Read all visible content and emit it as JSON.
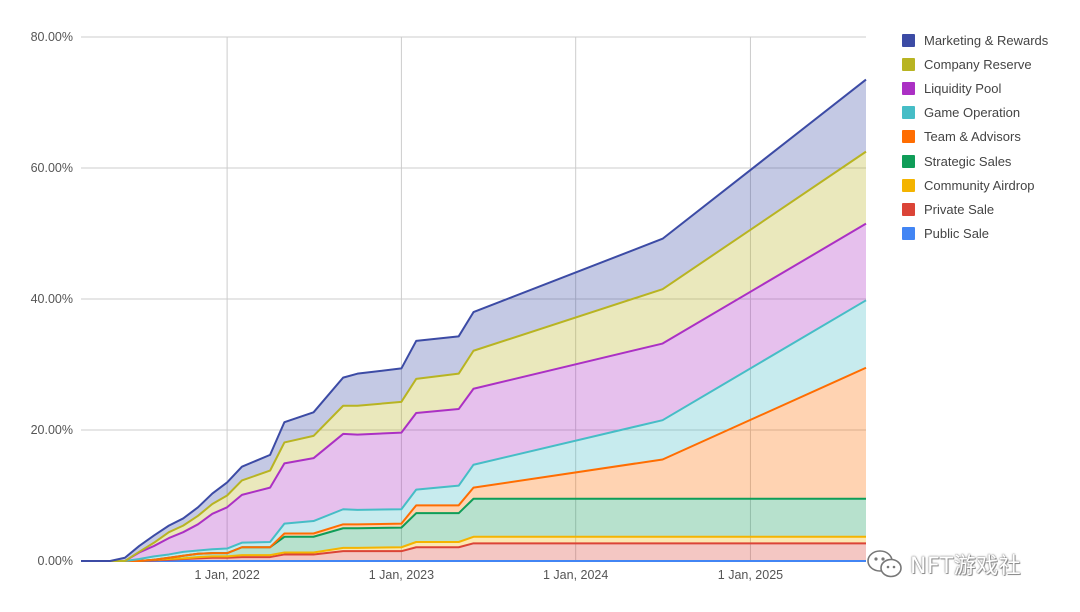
{
  "chart_data": {
    "type": "area",
    "stacked": true,
    "title": "",
    "xlabel": "",
    "ylabel": "",
    "ylim": [
      0,
      80
    ],
    "y_ticks": [
      "0.00%",
      "20.00%",
      "40.00%",
      "60.00%",
      "80.00%"
    ],
    "y_tick_values": [
      0,
      20,
      40,
      60,
      80
    ],
    "xlim": [
      "2021-03-01",
      "2025-08-31"
    ],
    "x_ticks": [
      "1 Jan, 2022",
      "1 Jan, 2023",
      "1 Jan, 2024",
      "1 Jan, 2025"
    ],
    "x_tick_dates": [
      "2022-01-01",
      "2023-01-01",
      "2024-01-01",
      "2025-01-01"
    ],
    "grid": true,
    "legend_position": "right",
    "x": [
      "2021-03-01",
      "2021-05-01",
      "2021-06-01",
      "2021-07-01",
      "2021-08-01",
      "2021-09-01",
      "2021-10-01",
      "2021-11-01",
      "2021-12-01",
      "2022-01-01",
      "2022-02-01",
      "2022-04-01",
      "2022-05-01",
      "2022-07-01",
      "2022-09-01",
      "2022-10-01",
      "2023-01-01",
      "2023-02-01",
      "2023-05-01",
      "2023-06-01",
      "2024-07-01",
      "2025-08-31"
    ],
    "series": [
      {
        "name": "Public Sale",
        "color": "#4285f4",
        "values": [
          0,
          0,
          0,
          0,
          0,
          0,
          0,
          0,
          0,
          0,
          0,
          0,
          0,
          0,
          0,
          0,
          0,
          0,
          0,
          0,
          0,
          0
        ]
      },
      {
        "name": "Private Sale",
        "color": "#db4437",
        "values": [
          0,
          0,
          0,
          0,
          0.1,
          0.2,
          0.3,
          0.4,
          0.5,
          0.5,
          0.6,
          0.6,
          1.0,
          1.0,
          1.5,
          1.5,
          1.5,
          2.1,
          2.1,
          2.7,
          2.7,
          2.7
        ]
      },
      {
        "name": "Community Airdrop",
        "color": "#f4b400",
        "values": [
          0,
          0,
          0,
          0,
          0.1,
          0.1,
          0.1,
          0.2,
          0.2,
          0.2,
          0.3,
          0.3,
          0.3,
          0.3,
          0.5,
          0.5,
          0.6,
          0.8,
          0.8,
          1.0,
          1.0,
          1.0
        ]
      },
      {
        "name": "Strategic Sales",
        "color": "#0f9d58",
        "values": [
          0,
          0,
          0,
          0,
          0,
          0.2,
          0.4,
          0.5,
          0.5,
          0.5,
          1.2,
          1.2,
          2.4,
          2.4,
          3.0,
          3.0,
          3.0,
          4.4,
          4.4,
          5.8,
          5.8,
          5.8
        ]
      },
      {
        "name": "Team & Advisors",
        "color": "#ff6d01",
        "values": [
          0,
          0,
          0,
          0,
          0,
          0,
          0,
          0,
          0,
          0,
          0,
          0,
          0.5,
          0.5,
          0.6,
          0.6,
          0.6,
          1.2,
          1.2,
          1.7,
          6.0,
          20.0
        ]
      },
      {
        "name": "Game Operation",
        "color": "#46bdc6",
        "values": [
          0,
          0,
          0,
          0.3,
          0.5,
          0.5,
          0.6,
          0.5,
          0.6,
          0.7,
          0.7,
          0.8,
          1.5,
          1.9,
          2.3,
          2.2,
          2.2,
          2.4,
          3.0,
          3.5,
          6.0,
          10.3
        ]
      },
      {
        "name": "Liquidity Pool",
        "color": "#ab30c4",
        "values": [
          0,
          0,
          0,
          1.0,
          1.6,
          2.5,
          3.0,
          4.0,
          5.4,
          6.3,
          7.3,
          8.3,
          9.2,
          9.6,
          11.5,
          11.5,
          11.7,
          11.7,
          11.7,
          11.6,
          11.7,
          11.7
        ]
      },
      {
        "name": "Company Reserve",
        "color": "#b8b422",
        "values": [
          0,
          0,
          0,
          0.1,
          0.5,
          0.9,
          1.0,
          1.3,
          1.5,
          1.8,
          2.2,
          2.6,
          3.2,
          3.4,
          4.3,
          4.4,
          4.7,
          5.2,
          5.4,
          5.8,
          8.3,
          11.0
        ]
      },
      {
        "name": "Marketing & Rewards",
        "color": "#3c4ba5",
        "values": [
          0,
          0,
          0.5,
          0.9,
          1.1,
          1.0,
          1.1,
          1.3,
          1.6,
          2.0,
          2.1,
          2.4,
          3.1,
          3.6,
          4.3,
          4.9,
          5.1,
          5.8,
          5.7,
          5.9,
          7.7,
          11.0
        ]
      }
    ],
    "legend_order": [
      "Marketing & Rewards",
      "Company Reserve",
      "Liquidity Pool",
      "Game Operation",
      "Team & Advisors",
      "Strategic Sales",
      "Community Airdrop",
      "Private Sale",
      "Public Sale"
    ]
  },
  "watermark": {
    "text": "NFT游戏社",
    "icon": "wechat-icon"
  }
}
